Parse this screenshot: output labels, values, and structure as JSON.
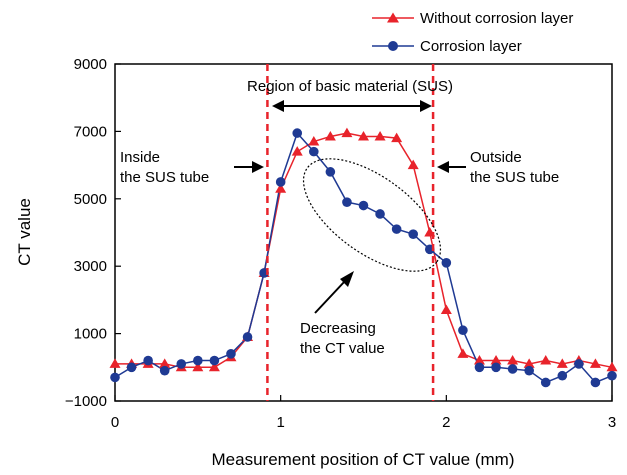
{
  "chart_data": {
    "type": "line",
    "xlabel": "Measurement position of CT value (mm)",
    "ylabel": "CT value",
    "xlim": [
      0,
      3
    ],
    "ylim": [
      -1000,
      9000
    ],
    "xticks": [
      "0",
      "1",
      "2",
      "3"
    ],
    "yticks": [
      "−1000",
      "1000",
      "3000",
      "5000",
      "7000",
      "9000"
    ],
    "grid": false,
    "legend_position": "top-right",
    "series": [
      {
        "name": "Without corrosion layer",
        "color": "#e8232b",
        "marker": "triangle",
        "x": [
          0,
          0.1,
          0.2,
          0.3,
          0.4,
          0.5,
          0.6,
          0.7,
          0.8,
          0.9,
          1.0,
          1.1,
          1.2,
          1.3,
          1.4,
          1.5,
          1.6,
          1.7,
          1.8,
          1.9,
          2.0,
          2.1,
          2.2,
          2.3,
          2.4,
          2.5,
          2.6,
          2.7,
          2.8,
          2.9,
          3.0
        ],
        "y": [
          100,
          100,
          100,
          100,
          0,
          0,
          0,
          300,
          900,
          2800,
          5300,
          6400,
          6700,
          6850,
          6950,
          6850,
          6850,
          6800,
          6000,
          4000,
          1700,
          400,
          200,
          200,
          200,
          100,
          200,
          100,
          200,
          100,
          0
        ]
      },
      {
        "name": "Corrosion layer",
        "color": "#1f3a93",
        "marker": "circle",
        "x": [
          0,
          0.1,
          0.2,
          0.3,
          0.4,
          0.5,
          0.6,
          0.7,
          0.8,
          0.9,
          1.0,
          1.1,
          1.2,
          1.3,
          1.4,
          1.5,
          1.6,
          1.7,
          1.8,
          1.9,
          2.0,
          2.1,
          2.2,
          2.3,
          2.4,
          2.5,
          2.6,
          2.7,
          2.8,
          2.9,
          3.0
        ],
        "y": [
          -300,
          0,
          200,
          -100,
          100,
          200,
          200,
          400,
          900,
          2800,
          5500,
          6950,
          6400,
          5800,
          4900,
          4800,
          4550,
          4100,
          3950,
          3500,
          3100,
          1100,
          0,
          0,
          -50,
          -100,
          -450,
          -250,
          100,
          -450,
          -250
        ]
      }
    ],
    "annotations": {
      "region_label": "Region of basic material (SUS)",
      "inside_line1": "Inside",
      "inside_line2": "the SUS tube",
      "outside_line1": "Outside",
      "outside_line2": "the SUS tube",
      "decreasing_line1": "Decreasing",
      "decreasing_line2": "the CT value",
      "region_bounds_mm": [
        0.92,
        1.92
      ]
    }
  }
}
